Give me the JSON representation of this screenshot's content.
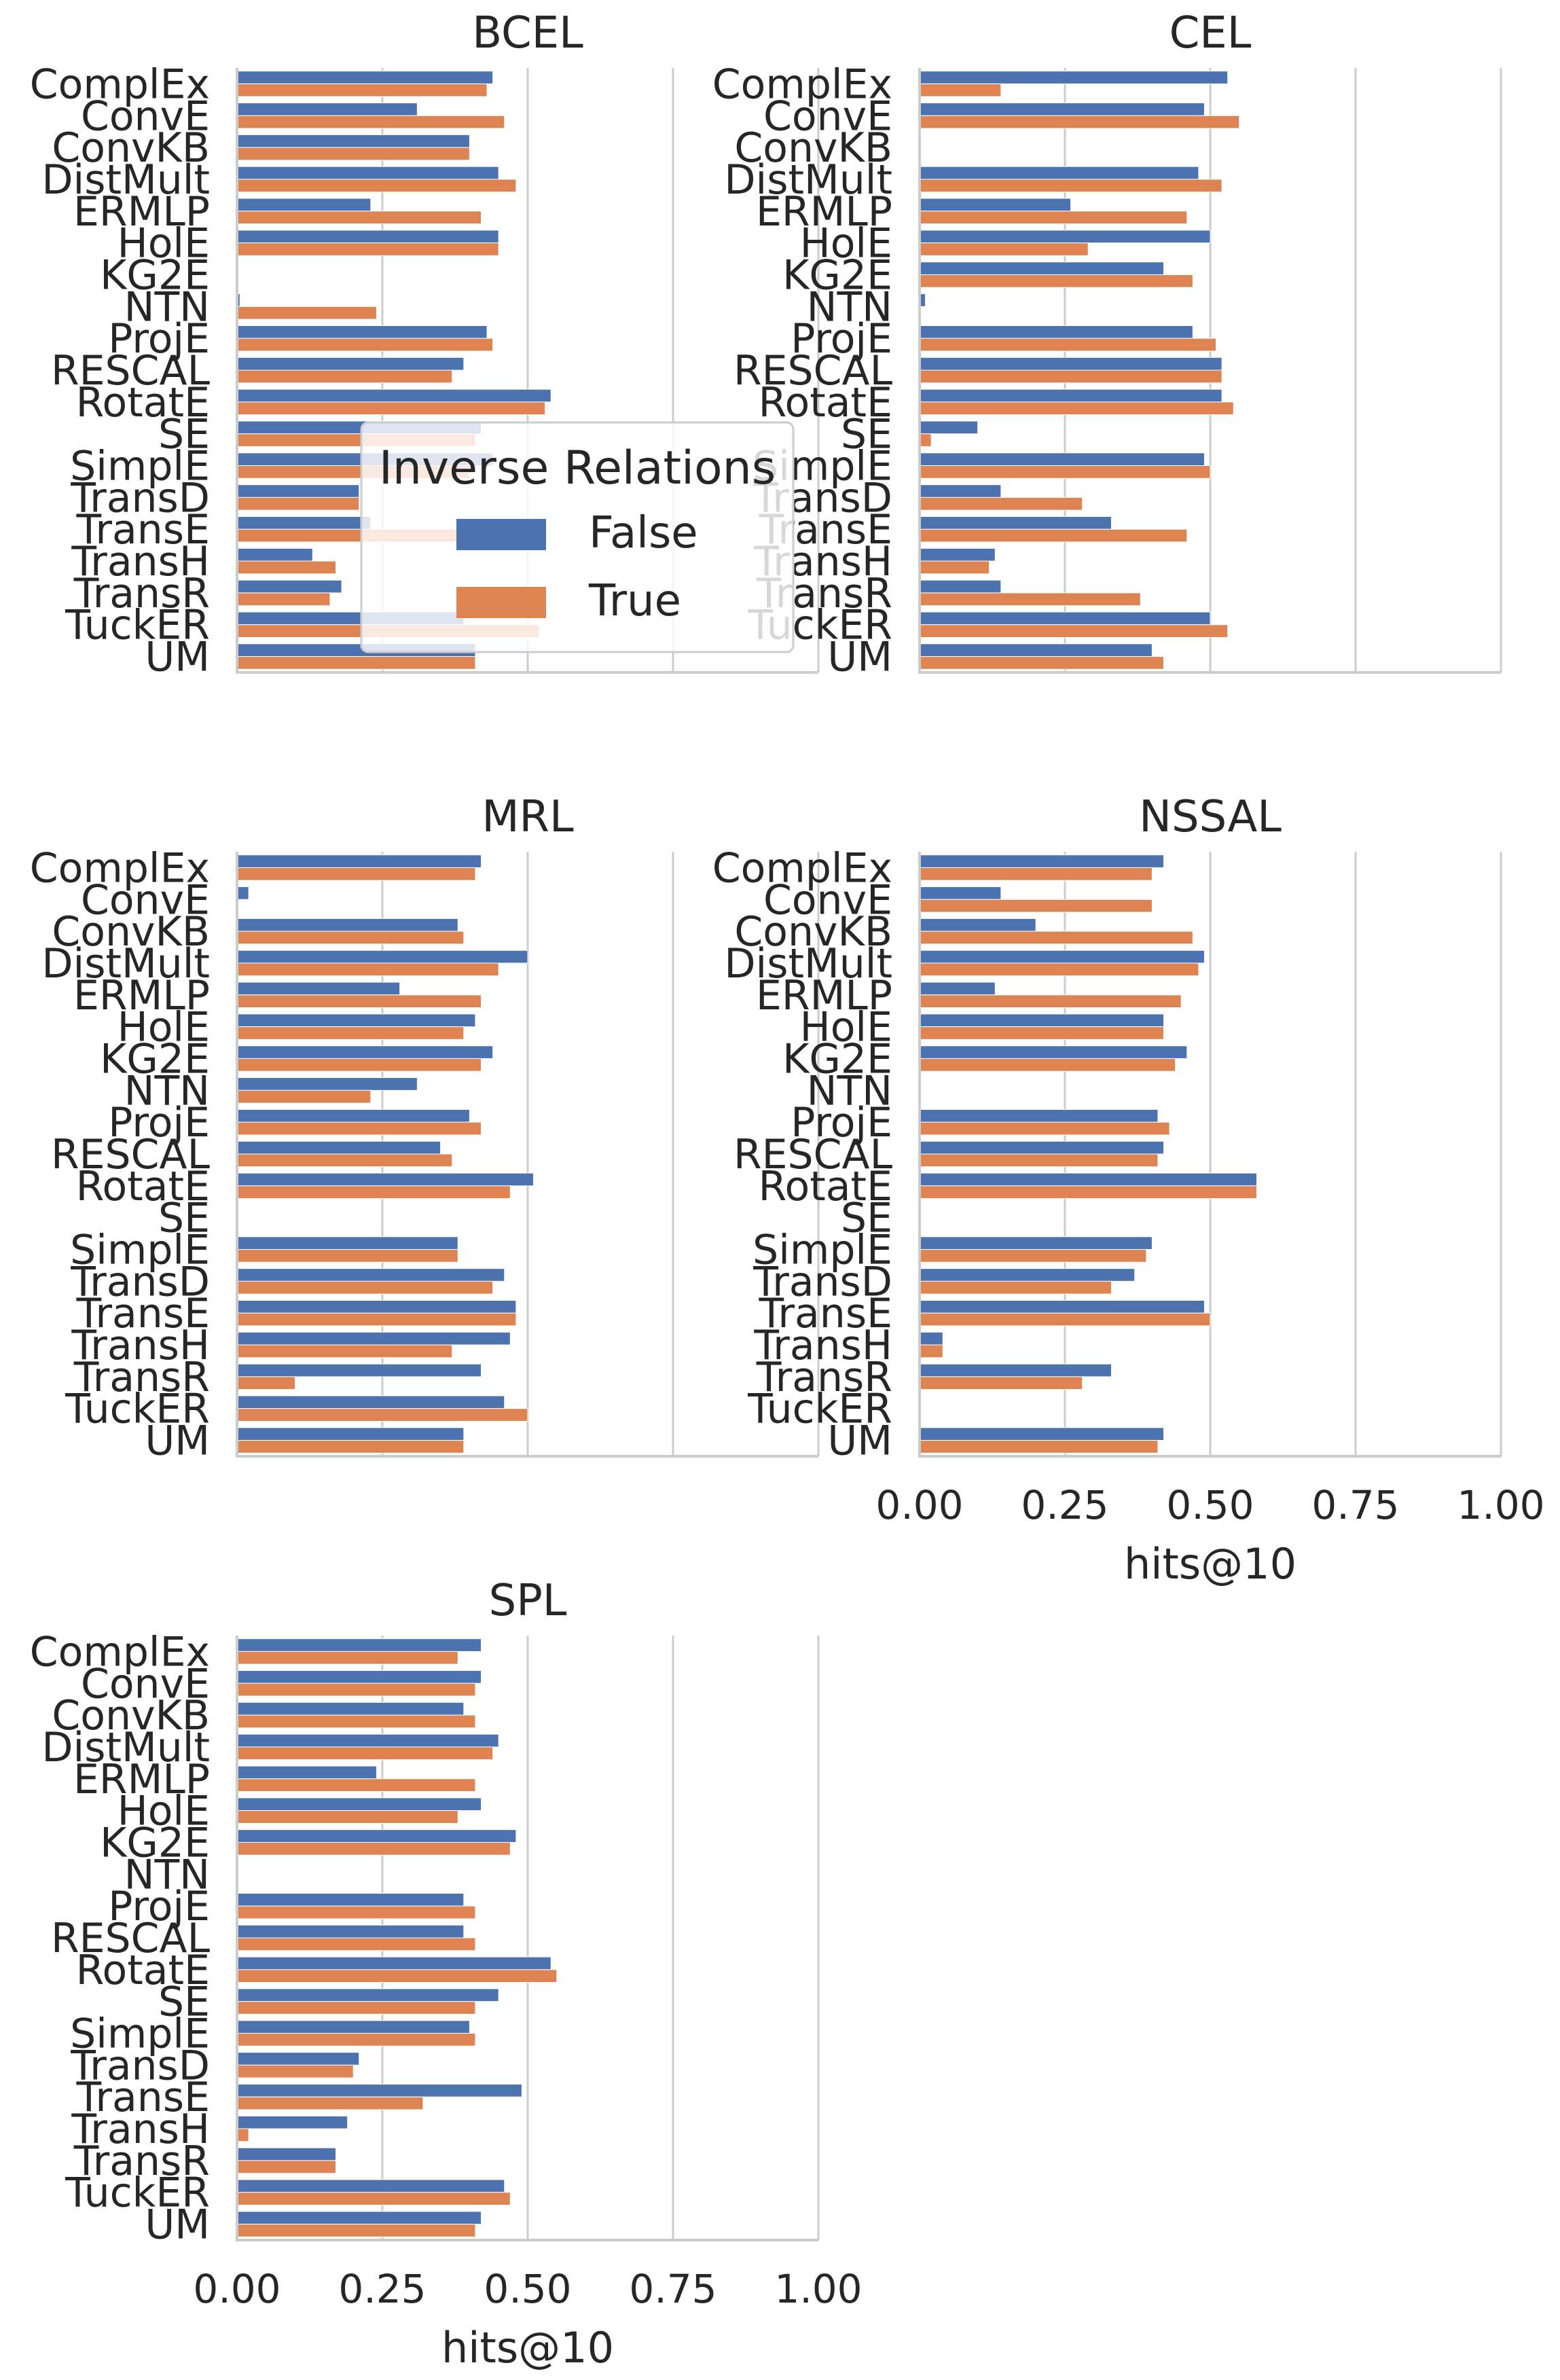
{
  "chart_data": {
    "type": "bar",
    "orientation": "horizontal",
    "xlim": [
      0,
      1
    ],
    "grid": true,
    "xticks": [
      "0.00",
      "0.25",
      "0.50",
      "0.75",
      "1.00"
    ],
    "xlabel": "hits@10",
    "categories": [
      "ComplEx",
      "ConvE",
      "ConvKB",
      "DistMult",
      "ERMLP",
      "HolE",
      "KG2E",
      "NTN",
      "ProjE",
      "RESCAL",
      "RotatE",
      "SE",
      "SimplE",
      "TransD",
      "TransE",
      "TransH",
      "TransR",
      "TuckER",
      "UM"
    ],
    "legend": {
      "title": "Inverse Relations",
      "placement": "inside BCEL panel, lower right",
      "entries": [
        {
          "label": "False",
          "color": "#4c72b0"
        },
        {
          "label": "True",
          "color": "#dd8452"
        }
      ]
    },
    "panels": [
      {
        "title": "BCEL",
        "series": [
          {
            "name": "False",
            "values": [
              0.44,
              0.31,
              0.4,
              0.45,
              0.23,
              0.45,
              0,
              0.005,
              0.43,
              0.39,
              0.54,
              0.42,
              0.44,
              0.21,
              0.23,
              0.13,
              0.18,
              0.39,
              0.41
            ]
          },
          {
            "name": "True",
            "values": [
              0.43,
              0.46,
              0.4,
              0.48,
              0.42,
              0.45,
              0,
              0.24,
              0.44,
              0.37,
              0.53,
              0.41,
              0.4,
              0.21,
              0.4,
              0.17,
              0.16,
              0.52,
              0.41
            ]
          }
        ]
      },
      {
        "title": "CEL",
        "series": [
          {
            "name": "False",
            "values": [
              0.53,
              0.49,
              0,
              0.48,
              0.26,
              0.5,
              0.42,
              0.01,
              0.47,
              0.52,
              0.52,
              0.1,
              0.49,
              0.14,
              0.33,
              0.13,
              0.14,
              0.5,
              0.4
            ]
          },
          {
            "name": "True",
            "values": [
              0.14,
              0.55,
              0,
              0.52,
              0.46,
              0.29,
              0.47,
              0,
              0.51,
              0.52,
              0.54,
              0.02,
              0.5,
              0.28,
              0.46,
              0.12,
              0.38,
              0.53,
              0.42
            ]
          }
        ]
      },
      {
        "title": "MRL",
        "series": [
          {
            "name": "False",
            "values": [
              0.42,
              0.02,
              0.38,
              0.5,
              0.28,
              0.41,
              0.44,
              0.31,
              0.4,
              0.35,
              0.51,
              0,
              0.38,
              0.46,
              0.48,
              0.47,
              0.42,
              0.46,
              0.39
            ]
          },
          {
            "name": "True",
            "values": [
              0.41,
              0,
              0.39,
              0.45,
              0.42,
              0.39,
              0.42,
              0.23,
              0.42,
              0.37,
              0.47,
              0,
              0.38,
              0.44,
              0.48,
              0.37,
              0.1,
              0.5,
              0.39
            ]
          }
        ]
      },
      {
        "title": "NSSAL",
        "series": [
          {
            "name": "False",
            "values": [
              0.42,
              0.14,
              0.2,
              0.49,
              0.13,
              0.42,
              0.46,
              0,
              0.41,
              0.42,
              0.58,
              0,
              0.4,
              0.37,
              0.49,
              0.04,
              0.33,
              0,
              0.42
            ]
          },
          {
            "name": "True",
            "values": [
              0.4,
              0.4,
              0.47,
              0.48,
              0.45,
              0.42,
              0.44,
              0,
              0.43,
              0.41,
              0.58,
              0,
              0.39,
              0.33,
              0.5,
              0.04,
              0.28,
              0,
              0.41
            ]
          }
        ]
      },
      {
        "title": "SPL",
        "series": [
          {
            "name": "False",
            "values": [
              0.42,
              0.42,
              0.39,
              0.45,
              0.24,
              0.42,
              0.48,
              0,
              0.39,
              0.39,
              0.54,
              0.45,
              0.4,
              0.21,
              0.49,
              0.19,
              0.17,
              0.46,
              0.42
            ]
          },
          {
            "name": "True",
            "values": [
              0.38,
              0.41,
              0.41,
              0.44,
              0.41,
              0.38,
              0.47,
              0,
              0.41,
              0.41,
              0.55,
              0.41,
              0.41,
              0.2,
              0.32,
              0.02,
              0.17,
              0.47,
              0.41
            ]
          }
        ]
      }
    ]
  }
}
